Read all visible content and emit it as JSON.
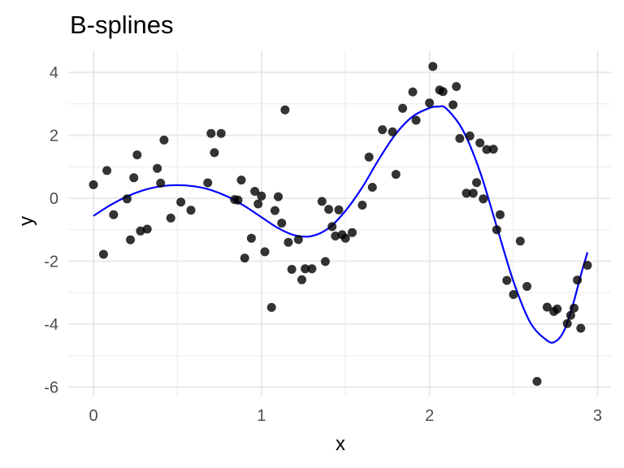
{
  "chart_data": {
    "type": "scatter",
    "title": "B-splines",
    "xlabel": "x",
    "ylabel": "y",
    "xlim": [
      -0.15,
      3.08
    ],
    "ylim": [
      -6.3,
      4.7
    ],
    "x_ticks": [
      0,
      1,
      2,
      3
    ],
    "y_ticks": [
      -6,
      -4,
      -2,
      0,
      2,
      4
    ],
    "x_tick_labels": [
      "0",
      "1",
      "2",
      "3"
    ],
    "y_tick_labels": [
      "-6",
      "-4",
      "-2",
      "0",
      "2",
      "4"
    ],
    "grid": true,
    "colors": {
      "points": "#000000",
      "fit": "#0000ff",
      "grid": "#ebebeb"
    },
    "series": [
      {
        "type": "scatter",
        "points": [
          [
            0.0,
            0.43
          ],
          [
            0.06,
            -1.78
          ],
          [
            0.08,
            0.88
          ],
          [
            0.12,
            -0.52
          ],
          [
            0.2,
            -0.02
          ],
          [
            0.22,
            -1.32
          ],
          [
            0.24,
            0.65
          ],
          [
            0.26,
            1.38
          ],
          [
            0.28,
            -1.04
          ],
          [
            0.32,
            -0.98
          ],
          [
            0.38,
            0.95
          ],
          [
            0.4,
            0.48
          ],
          [
            0.42,
            1.85
          ],
          [
            0.46,
            -0.63
          ],
          [
            0.52,
            -0.12
          ],
          [
            0.58,
            -0.38
          ],
          [
            0.68,
            0.49
          ],
          [
            0.7,
            2.06
          ],
          [
            0.72,
            1.45
          ],
          [
            0.76,
            2.06
          ],
          [
            0.84,
            -0.04
          ],
          [
            0.86,
            -0.06
          ],
          [
            0.88,
            0.58
          ],
          [
            0.9,
            -1.9
          ],
          [
            0.94,
            -1.27
          ],
          [
            0.96,
            0.22
          ],
          [
            0.98,
            -0.18
          ],
          [
            1.0,
            0.07
          ],
          [
            1.02,
            -1.7
          ],
          [
            1.06,
            -3.47
          ],
          [
            1.08,
            -0.39
          ],
          [
            1.1,
            0.05
          ],
          [
            1.12,
            -0.79
          ],
          [
            1.14,
            2.81
          ],
          [
            1.16,
            -1.4
          ],
          [
            1.18,
            -2.26
          ],
          [
            1.22,
            -1.31
          ],
          [
            1.24,
            -2.59
          ],
          [
            1.26,
            -2.24
          ],
          [
            1.3,
            -2.24
          ],
          [
            1.36,
            -0.1
          ],
          [
            1.38,
            -2.01
          ],
          [
            1.4,
            -0.35
          ],
          [
            1.42,
            -0.9
          ],
          [
            1.44,
            -1.2
          ],
          [
            1.46,
            -0.37
          ],
          [
            1.48,
            -1.16
          ],
          [
            1.5,
            -1.27
          ],
          [
            1.54,
            -1.09
          ],
          [
            1.6,
            -0.22
          ],
          [
            1.64,
            1.31
          ],
          [
            1.66,
            0.35
          ],
          [
            1.72,
            2.18
          ],
          [
            1.78,
            2.11
          ],
          [
            1.8,
            0.76
          ],
          [
            1.84,
            2.86
          ],
          [
            1.9,
            3.38
          ],
          [
            1.92,
            2.48
          ],
          [
            2.0,
            3.03
          ],
          [
            2.02,
            4.19
          ],
          [
            2.06,
            3.44
          ],
          [
            2.08,
            3.39
          ],
          [
            2.14,
            2.97
          ],
          [
            2.16,
            3.55
          ],
          [
            2.18,
            1.9
          ],
          [
            2.22,
            0.16
          ],
          [
            2.24,
            1.98
          ],
          [
            2.26,
            0.16
          ],
          [
            2.28,
            0.5
          ],
          [
            2.3,
            1.76
          ],
          [
            2.32,
            -0.02
          ],
          [
            2.34,
            1.55
          ],
          [
            2.38,
            1.56
          ],
          [
            2.4,
            -1.0
          ],
          [
            2.42,
            -0.52
          ],
          [
            2.46,
            -2.61
          ],
          [
            2.5,
            -3.06
          ],
          [
            2.54,
            -1.36
          ],
          [
            2.58,
            -2.8
          ],
          [
            2.64,
            -5.82
          ],
          [
            2.7,
            -3.46
          ],
          [
            2.74,
            -3.6
          ],
          [
            2.76,
            -3.52
          ],
          [
            2.82,
            -3.98
          ],
          [
            2.84,
            -3.72
          ],
          [
            2.86,
            -3.49
          ],
          [
            2.88,
            -2.6
          ],
          [
            2.9,
            -4.13
          ],
          [
            2.94,
            -2.13
          ]
        ]
      },
      {
        "type": "line",
        "x": [
          0.0,
          0.1,
          0.2,
          0.3,
          0.4,
          0.5,
          0.6,
          0.7,
          0.8,
          0.9,
          1.0,
          1.1,
          1.2,
          1.3,
          1.4,
          1.5,
          1.6,
          1.7,
          1.8,
          1.9,
          2.0,
          2.05,
          2.1,
          2.2,
          2.3,
          2.4,
          2.5,
          2.6,
          2.7,
          2.75,
          2.8,
          2.85,
          2.9,
          2.94
        ],
        "y": [
          -0.56,
          -0.22,
          0.06,
          0.26,
          0.38,
          0.42,
          0.38,
          0.26,
          0.05,
          -0.25,
          -0.6,
          -0.95,
          -1.18,
          -1.2,
          -0.95,
          -0.4,
          0.35,
          1.25,
          2.05,
          2.6,
          2.87,
          2.91,
          2.85,
          2.15,
          0.85,
          -0.9,
          -2.65,
          -3.95,
          -4.52,
          -4.55,
          -4.22,
          -3.45,
          -2.45,
          -1.72
        ]
      }
    ]
  }
}
